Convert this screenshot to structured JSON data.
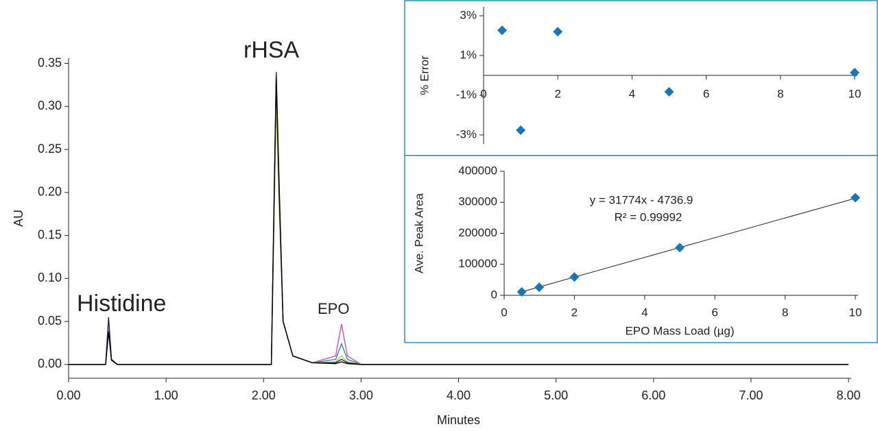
{
  "chart_data": [
    {
      "type": "line",
      "xlabel": "Minutes",
      "ylabel": "AU",
      "annotations": [
        "Histidine",
        "rHSA",
        "EPO"
      ],
      "x": [
        0,
        0.38,
        0.41,
        0.44,
        0.5,
        2.08,
        2.11,
        2.13,
        2.16,
        2.2,
        2.3,
        2.5,
        2.74,
        2.8,
        2.86,
        3.0,
        8.0
      ],
      "series": [
        {
          "color": "#d04fc0",
          "values": [
            0,
            0,
            0.04,
            0.005,
            0,
            0,
            0.2,
            0.33,
            0.2,
            0.05,
            0.01,
            0.002,
            0.01,
            0.047,
            0.01,
            0,
            0
          ]
        },
        {
          "color": "#1f8fa0",
          "values": [
            0,
            0,
            0.045,
            0.006,
            0,
            0,
            0.19,
            0.32,
            0.19,
            0.05,
            0.01,
            0.002,
            0.006,
            0.024,
            0.006,
            0,
            0
          ]
        },
        {
          "color": "#b5c93a",
          "values": [
            0,
            0,
            0.05,
            0.006,
            0,
            0,
            0.18,
            0.3,
            0.18,
            0.05,
            0.01,
            0.002,
            0.003,
            0.01,
            0.003,
            0,
            0
          ]
        },
        {
          "color": "#2b1a6b",
          "values": [
            0,
            0,
            0.055,
            0.006,
            0,
            0,
            0.2,
            0.34,
            0.21,
            0.05,
            0.01,
            0.002,
            0.002,
            0.006,
            0.002,
            0,
            0
          ]
        },
        {
          "color": "#000000",
          "values": [
            0,
            0,
            0.038,
            0.005,
            0,
            0,
            0.21,
            0.335,
            0.2,
            0.05,
            0.01,
            0.002,
            0.001,
            0.003,
            0.001,
            0,
            0
          ]
        }
      ],
      "xlim": [
        0,
        8
      ],
      "xticks": [
        {
          "value": 0,
          "label": "0.00"
        },
        {
          "value": 1,
          "label": "1.00"
        },
        {
          "value": 2,
          "label": "2.00"
        },
        {
          "value": 3,
          "label": "3.00"
        },
        {
          "value": 4,
          "label": "4.00"
        },
        {
          "value": 5,
          "label": "5.00"
        },
        {
          "value": 6,
          "label": "6.00"
        },
        {
          "value": 7,
          "label": "7.00"
        },
        {
          "value": 8,
          "label": "8.00"
        }
      ],
      "ylim": [
        -0.016,
        0.356
      ],
      "yticks": [
        {
          "value": 0,
          "label": "0.00"
        },
        {
          "value": 0.05,
          "label": "0.05"
        },
        {
          "value": 0.1,
          "label": "0.10"
        },
        {
          "value": 0.15,
          "label": "0.15"
        },
        {
          "value": 0.2,
          "label": "0.20"
        },
        {
          "value": 0.25,
          "label": "0.25"
        },
        {
          "value": 0.3,
          "label": "0.30"
        },
        {
          "value": 0.35,
          "label": "0.35"
        }
      ]
    },
    {
      "type": "scatter",
      "ylabel": "% Error",
      "color": "#1b75bb",
      "x": [
        0.5,
        1,
        2,
        5,
        10
      ],
      "values": [
        2.27,
        -2.76,
        2.2,
        -0.83,
        0.14
      ],
      "xlim": [
        0,
        10
      ],
      "xticks": [
        0,
        2,
        4,
        6,
        8,
        10
      ],
      "ylim": [
        -3.45,
        3.45
      ],
      "yticks": [
        {
          "value": 3,
          "label": "3%"
        },
        {
          "value": 1,
          "label": "1%"
        },
        {
          "value": -1,
          "label": "-1%"
        },
        {
          "value": -3,
          "label": "-3%"
        }
      ]
    },
    {
      "type": "scatter",
      "xlabel": "EPO Mass Load (µg)",
      "ylabel": "Ave. Peak Area",
      "color": "#1b75bb",
      "annotations": [
        "y = 31774x - 4736.9",
        "R² = 0.99992"
      ],
      "trendline": {
        "slope": 31774,
        "intercept": -4736.9
      },
      "x": [
        0.5,
        1,
        2,
        5,
        10
      ],
      "values": [
        11000,
        26000,
        59000,
        154000,
        315000
      ],
      "xlim": [
        0,
        10
      ],
      "xticks": [
        0,
        2,
        4,
        6,
        8,
        10
      ],
      "ylim": [
        0,
        400000
      ],
      "yticks": [
        0,
        100000,
        200000,
        300000,
        400000
      ]
    }
  ]
}
